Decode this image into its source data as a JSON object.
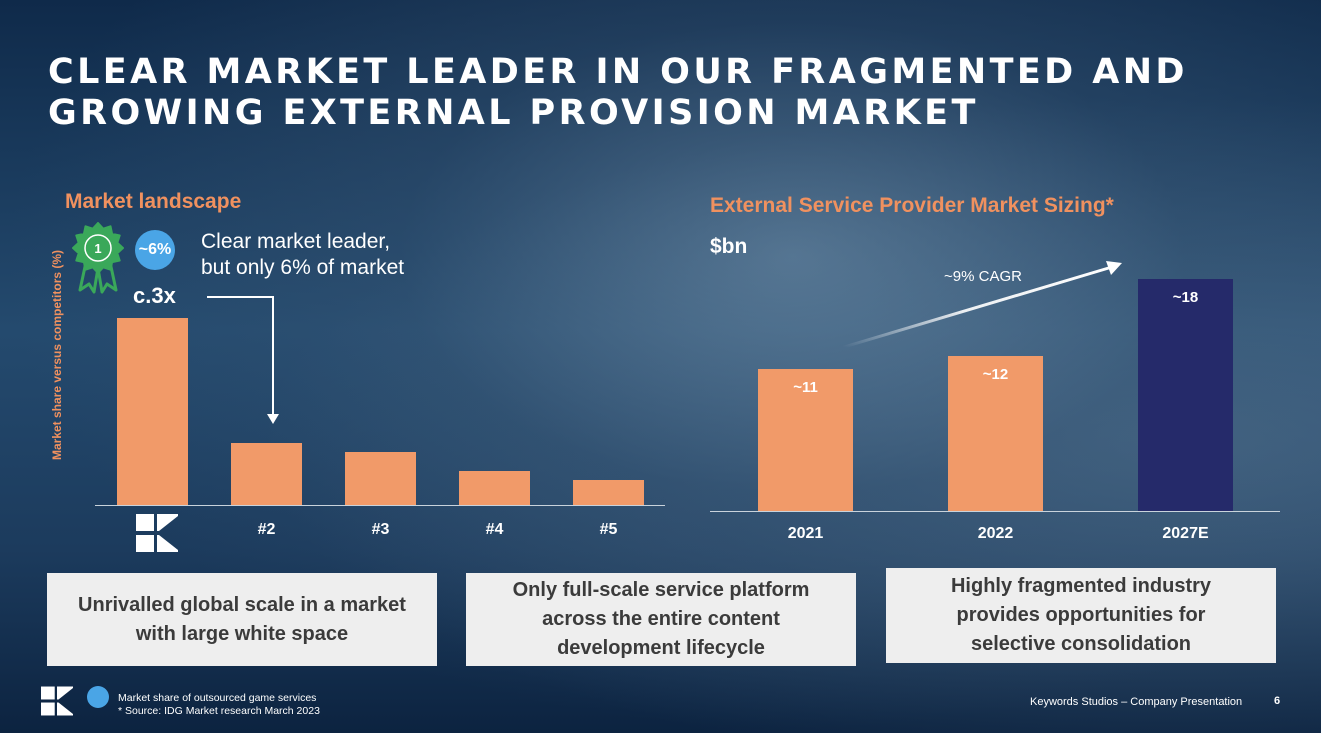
{
  "title_lines": [
    "CLEAR MARKET LEADER IN OUR FRAGMENTED AND",
    "GROWING EXTERNAL PROVISION MARKET"
  ],
  "left_panel": {
    "heading": "Market landscape",
    "axis_label": "Market share versus competitors (%)",
    "rank_badge": "1",
    "share_badge": "~6%",
    "leader_text": [
      "Clear market leader,",
      "but only 6% of market"
    ],
    "multiple_label": "c.3x"
  },
  "right_panel": {
    "heading": "External Service Provider Market Sizing*",
    "unit": "$bn",
    "cagr": "~9% CAGR"
  },
  "boxes": [
    [
      "Unrivalled global scale in a market",
      "with large white space"
    ],
    [
      "Only full-scale service platform",
      "across the entire content",
      "development lifecycle"
    ],
    [
      "Highly fragmented industry",
      "provides opportunities for",
      "selective consolidation"
    ]
  ],
  "footer": {
    "note_lines": [
      "Market share of outsourced game services",
      "* Source: IDG Market research March 2023"
    ],
    "company": "Keywords Studios – Company Presentation",
    "page": "6"
  },
  "colors": {
    "accent_orange": "#f19a69",
    "heading_orange": "#f0915f",
    "navy_bar": "#252a6a",
    "badge_blue": "#4aa5e6",
    "rosette_green": "#3aa85a",
    "box_bg": "#eeeeee"
  },
  "icons": [
    "rosette-icon",
    "keywords-logo-icon",
    "arrow-icon"
  ],
  "chart_data": [
    {
      "type": "bar",
      "categories": [
        "",
        "#2",
        "#3",
        "#4",
        "#5"
      ],
      "first_category_icon": "keywords-logo-icon",
      "values": [
        3.0,
        1.0,
        0.85,
        0.55,
        0.4
      ],
      "title": "Market landscape",
      "xlabel": "",
      "ylabel": "Market share versus competitors (%)",
      "ylim": [
        0,
        3.2
      ],
      "annotations": [
        "c.3x"
      ]
    },
    {
      "type": "bar",
      "categories": [
        "2021",
        "2022",
        "2027E"
      ],
      "values": [
        11,
        12,
        18
      ],
      "value_labels": [
        "~11",
        "~12",
        "~18"
      ],
      "title": "External Service Provider Market Sizing*",
      "xlabel": "",
      "ylabel": "$bn",
      "ylim": [
        0,
        19
      ],
      "annotations": [
        "~9% CAGR"
      ]
    }
  ]
}
